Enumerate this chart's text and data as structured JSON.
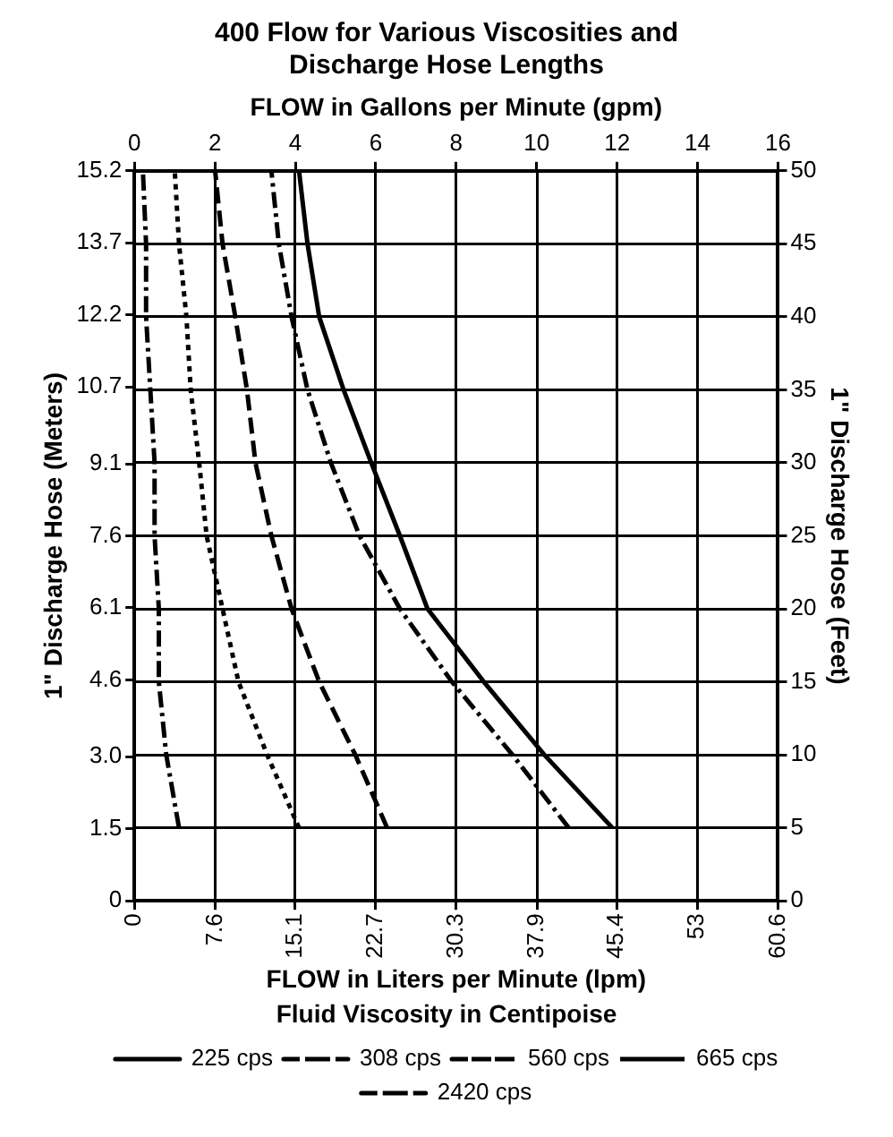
{
  "chart_data": {
    "type": "line",
    "title": "400 Flow for Various Viscosities and Discharge Hose Lengths",
    "xlabel": "FLOW in Liters per Minute (lpm)",
    "x2label": "FLOW in Gallons per Minute (gpm)",
    "ylabel": "1\" Discharge Hose (Meters)",
    "y2label": "1\" Discharge Hose (Feet)",
    "legend_title": "Fluid Viscosity in Centipoise",
    "xlim": [
      0,
      60.6
    ],
    "xticks": [
      0,
      7.6,
      15.1,
      22.7,
      30.3,
      37.9,
      45.4,
      53,
      60.6
    ],
    "x2lim": [
      0,
      16
    ],
    "x2ticks": [
      0,
      2,
      4,
      6,
      8,
      10,
      12,
      14,
      16
    ],
    "ylim": [
      0,
      15.2
    ],
    "yticks": [
      0,
      1.5,
      {
        "value": 3,
        "label": "3.0"
      },
      4.6,
      6.1,
      7.6,
      9.1,
      10.7,
      12.2,
      13.7,
      15.2
    ],
    "y2lim": [
      0,
      50
    ],
    "y2ticks": [
      0,
      5,
      10,
      15,
      20,
      25,
      30,
      35,
      40,
      45,
      50
    ],
    "grid": true,
    "legend": "bottom",
    "marker": "none",
    "series": [
      {
        "name": "225 cps",
        "color": "#000000",
        "axis": "y2",
        "line_style": "solid",
        "x": [
          45.0,
          38.6,
          32.9,
          27.6,
          25.0,
          22.3,
          19.7,
          17.4,
          16.3,
          15.5
        ],
        "values": [
          5,
          10,
          15,
          20,
          25,
          30,
          35,
          40,
          45,
          50
        ]
      },
      {
        "name": "308 cps",
        "color": "#000000",
        "axis": "y2",
        "line_style": "dashdot",
        "x": [
          40.9,
          35.6,
          29.9,
          25.0,
          21.2,
          18.5,
          16.3,
          14.8,
          13.6,
          12.9
        ],
        "values": [
          5,
          10,
          15,
          20,
          25,
          30,
          35,
          40,
          45,
          50
        ]
      },
      {
        "name": "560 cps",
        "color": "#000000",
        "axis": "y2",
        "line_style": "dashed",
        "x": [
          23.8,
          20.8,
          17.4,
          14.8,
          12.9,
          11.4,
          10.6,
          9.5,
          8.3,
          7.6
        ],
        "values": [
          5,
          10,
          15,
          20,
          25,
          30,
          35,
          40,
          45,
          50
        ]
      },
      {
        "name": "665 cps",
        "color": "#000000",
        "axis": "y2",
        "line_style": "dotted",
        "x": [
          15.5,
          12.5,
          9.8,
          8.3,
          6.8,
          6.1,
          5.3,
          4.9,
          4.2,
          3.8
        ],
        "values": [
          5,
          10,
          15,
          20,
          25,
          30,
          35,
          40,
          45,
          50
        ]
      },
      {
        "name": "2420 cps",
        "color": "#000000",
        "axis": "y2",
        "line_style": "dashdot",
        "x": [
          4.2,
          3.0,
          2.3,
          2.3,
          1.9,
          1.9,
          1.5,
          1.1,
          1.1,
          0.8
        ],
        "values": [
          5,
          10,
          15,
          20,
          25,
          30,
          35,
          40,
          45,
          50
        ]
      }
    ]
  }
}
